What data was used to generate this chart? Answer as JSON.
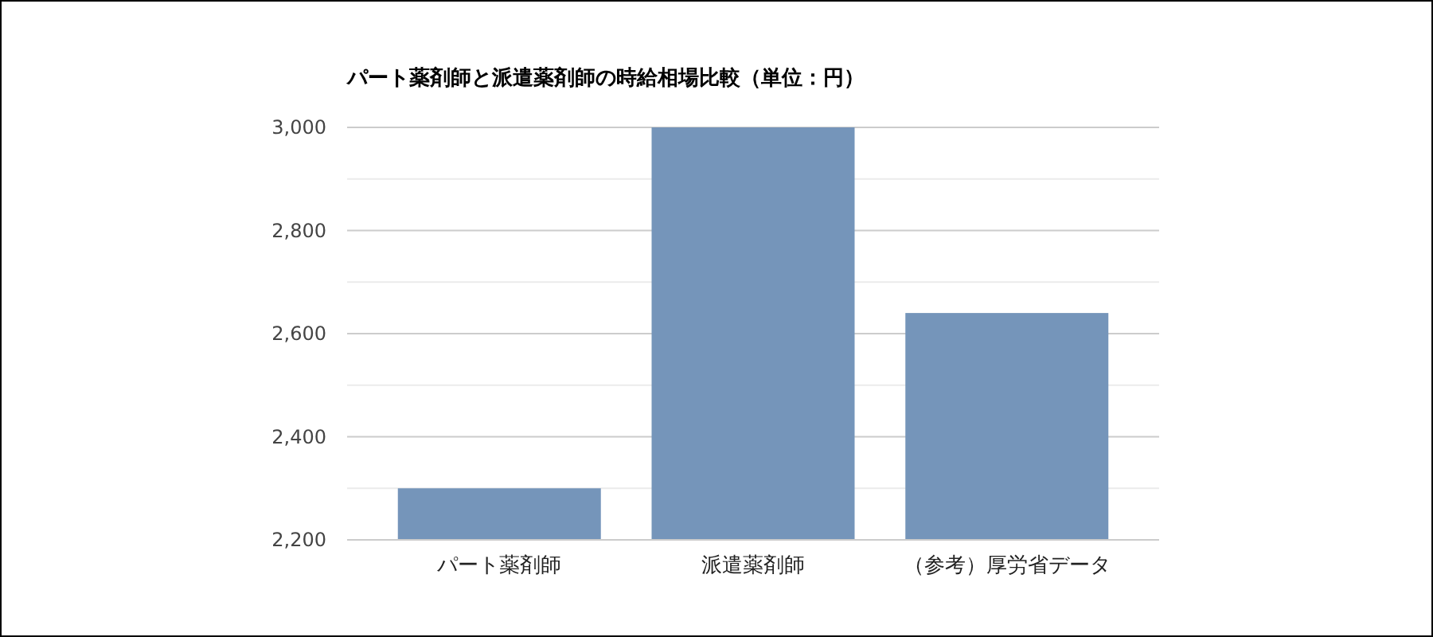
{
  "chart_data": {
    "type": "bar",
    "title": "パート薬剤師と派遣薬剤師の時給相場比較（単位：円）",
    "categories": [
      "パート薬剤師",
      "派遣薬剤師",
      "（参考）厚労省データ"
    ],
    "values": [
      2300,
      3000,
      2640
    ],
    "color": "#7595ba",
    "ylim": [
      2200,
      3000
    ],
    "yticks": [
      {
        "value": 2200,
        "label": "2,200"
      },
      {
        "value": 2300,
        "label": null
      },
      {
        "value": 2400,
        "label": "2,400"
      },
      {
        "value": 2500,
        "label": null
      },
      {
        "value": 2600,
        "label": "2,600"
      },
      {
        "value": 2700,
        "label": null
      },
      {
        "value": 2800,
        "label": "2,800"
      },
      {
        "value": 2900,
        "label": null
      },
      {
        "value": 3000,
        "label": "3,000"
      }
    ],
    "grid": "y"
  }
}
